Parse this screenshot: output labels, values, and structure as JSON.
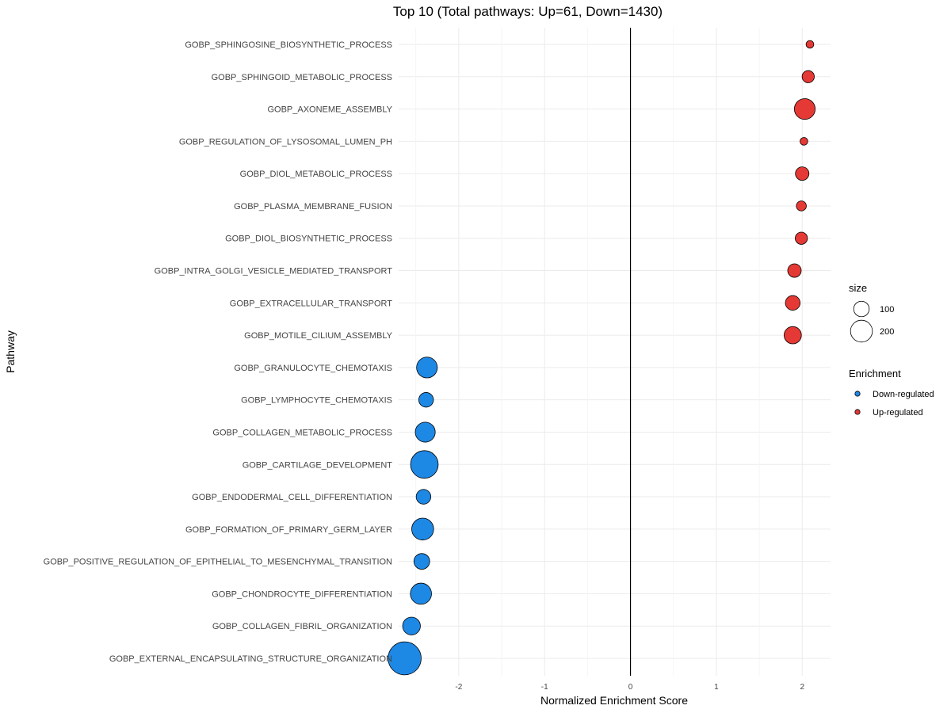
{
  "chart_data": {
    "type": "scatter",
    "title": "Top 10 (Total pathways: Up=61, Down=1430)",
    "xlabel": "Normalized Enrichment Score",
    "ylabel": "Pathway",
    "xlim": [
      -2.7,
      2.33
    ],
    "xticks": [
      -2,
      -1,
      0,
      1,
      2
    ],
    "xtick_labels": [
      "-2",
      "-1",
      "0",
      "1",
      "2"
    ],
    "grid": true,
    "reference_line_x": 0,
    "points": [
      {
        "pathway": "GOBP_SPHINGOSINE_BIOSYNTHETIC_PROCESS",
        "nes": 2.09,
        "size": 18,
        "enrichment": "Up-regulated"
      },
      {
        "pathway": "GOBP_SPHINGOID_METABOLIC_PROCESS",
        "nes": 2.07,
        "size": 45,
        "enrichment": "Up-regulated"
      },
      {
        "pathway": "GOBP_AXONEME_ASSEMBLY",
        "nes": 2.03,
        "size": 130,
        "enrichment": "Up-regulated"
      },
      {
        "pathway": "GOBP_REGULATION_OF_LYSOSOMAL_LUMEN_PH",
        "nes": 2.02,
        "size": 18,
        "enrichment": "Up-regulated"
      },
      {
        "pathway": "GOBP_DIOL_METABOLIC_PROCESS",
        "nes": 2.0,
        "size": 55,
        "enrichment": "Up-regulated"
      },
      {
        "pathway": "GOBP_PLASMA_MEMBRANE_FUSION",
        "nes": 1.99,
        "size": 30,
        "enrichment": "Up-regulated"
      },
      {
        "pathway": "GOBP_DIOL_BIOSYNTHETIC_PROCESS",
        "nes": 1.99,
        "size": 45,
        "enrichment": "Up-regulated"
      },
      {
        "pathway": "GOBP_INTRA_GOLGI_VESICLE_MEDIATED_TRANSPORT",
        "nes": 1.91,
        "size": 55,
        "enrichment": "Up-regulated"
      },
      {
        "pathway": "GOBP_EXTRACELLULAR_TRANSPORT",
        "nes": 1.89,
        "size": 65,
        "enrichment": "Up-regulated"
      },
      {
        "pathway": "GOBP_MOTILE_CILIUM_ASSEMBLY",
        "nes": 1.89,
        "size": 90,
        "enrichment": "Up-regulated"
      },
      {
        "pathway": "GOBP_GRANULOCYTE_CHEMOTAXIS",
        "nes": -2.37,
        "size": 130,
        "enrichment": "Down-regulated"
      },
      {
        "pathway": "GOBP_LYMPHOCYTE_CHEMOTAXIS",
        "nes": -2.38,
        "size": 65,
        "enrichment": "Down-regulated"
      },
      {
        "pathway": "GOBP_COLLAGEN_METABOLIC_PROCESS",
        "nes": -2.39,
        "size": 120,
        "enrichment": "Down-regulated"
      },
      {
        "pathway": "GOBP_CARTILAGE_DEVELOPMENT",
        "nes": -2.4,
        "size": 230,
        "enrichment": "Down-regulated"
      },
      {
        "pathway": "GOBP_ENDODERMAL_CELL_DIFFERENTIATION",
        "nes": -2.41,
        "size": 65,
        "enrichment": "Down-regulated"
      },
      {
        "pathway": "GOBP_FORMATION_OF_PRIMARY_GERM_LAYER",
        "nes": -2.42,
        "size": 145,
        "enrichment": "Down-regulated"
      },
      {
        "pathway": "GOBP_POSITIVE_REGULATION_OF_EPITHELIAL_TO_MESENCHYMAL_TRANSITION",
        "nes": -2.43,
        "size": 75,
        "enrichment": "Down-regulated"
      },
      {
        "pathway": "GOBP_CHONDROCYTE_DIFFERENTIATION",
        "nes": -2.44,
        "size": 135,
        "enrichment": "Down-regulated"
      },
      {
        "pathway": "GOBP_COLLAGEN_FIBRIL_ORGANIZATION",
        "nes": -2.55,
        "size": 95,
        "enrichment": "Down-regulated"
      },
      {
        "pathway": "GOBP_EXTERNAL_ENCAPSULATING_STRUCTURE_ORGANIZATION",
        "nes": -2.63,
        "size": 330,
        "enrichment": "Down-regulated"
      }
    ],
    "legend_size": {
      "title": "size",
      "entries": [
        {
          "label": "100",
          "value": 100
        },
        {
          "label": "200",
          "value": 200
        }
      ]
    },
    "legend_color": {
      "title": "Enrichment",
      "entries": [
        {
          "label": "Down-regulated",
          "color": "#1E88E5"
        },
        {
          "label": "Up-regulated",
          "color": "#E53935"
        }
      ]
    },
    "legend_placement": "right",
    "colors": {
      "Down-regulated": "#1E88E5",
      "Up-regulated": "#E53935"
    }
  }
}
